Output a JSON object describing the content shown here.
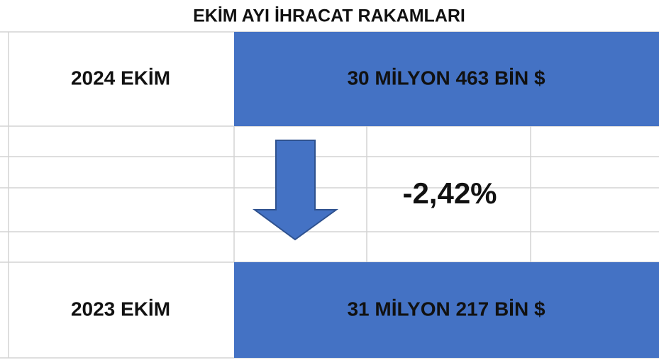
{
  "header": {
    "title": "EKİM AYI İHRACAT RAKAMLARI"
  },
  "table": {
    "current": {
      "label": "2024 EKİM",
      "value": "30 MİLYON 463 BİN $"
    },
    "change": "-2,42%",
    "previous": {
      "label": "2023 EKİM",
      "value": "31 MİLYON 217 BİN $"
    }
  }
}
